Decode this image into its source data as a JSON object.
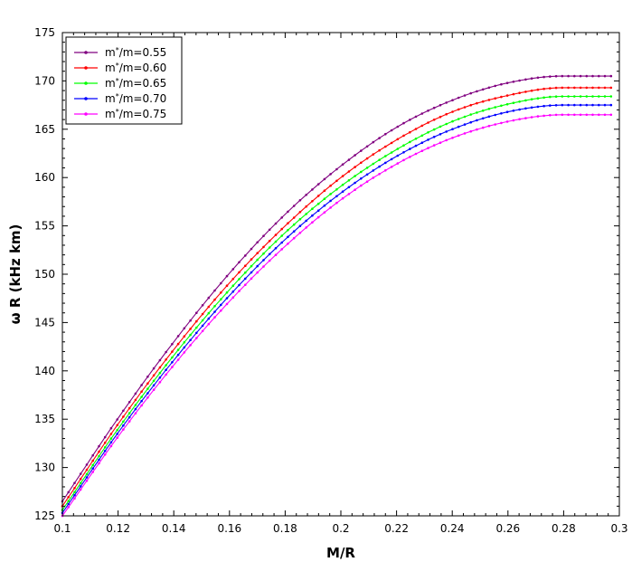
{
  "chart_data": {
    "type": "line",
    "title": "",
    "xlabel": "M/R",
    "ylabel": "ω R (kHz km)",
    "xlim": [
      0.1,
      0.3
    ],
    "ylim": [
      125,
      175
    ],
    "xticks": [
      0.1,
      0.12,
      0.14,
      0.16,
      0.18,
      0.2,
      0.22,
      0.24,
      0.26,
      0.28,
      0.3
    ],
    "xtick_labels": [
      "0.1",
      "0.12",
      "0.14",
      "0.16",
      "0.18",
      "0.2",
      "0.22",
      "0.24",
      "0.26",
      "0.28",
      "0.3"
    ],
    "yticks": [
      125,
      130,
      135,
      140,
      145,
      150,
      155,
      160,
      165,
      170,
      175
    ],
    "ytick_labels": [
      "125",
      "130",
      "135",
      "140",
      "145",
      "150",
      "155",
      "160",
      "165",
      "170",
      "175"
    ],
    "grid": false,
    "legend_position": "top-left",
    "series": [
      {
        "name": "m*/m=0.55",
        "label_base": "m",
        "label_sup": "*",
        "label_rest": "/m=0.55",
        "color": "#800080",
        "x": [
          0.1,
          0.12,
          0.14,
          0.16,
          0.18,
          0.2,
          0.22,
          0.24,
          0.26,
          0.28,
          0.297
        ],
        "y": [
          126.5,
          135.1,
          143.0,
          150.1,
          156.2,
          161.2,
          165.2,
          168.0,
          169.8,
          170.5,
          170.5
        ]
      },
      {
        "name": "m*/m=0.60",
        "label_base": "m",
        "label_sup": "*",
        "label_rest": "/m=0.60",
        "color": "#ff0000",
        "x": [
          0.1,
          0.12,
          0.14,
          0.16,
          0.18,
          0.2,
          0.22,
          0.24,
          0.26,
          0.28,
          0.297
        ],
        "y": [
          126.0,
          134.5,
          142.2,
          149.1,
          155.0,
          160.0,
          163.9,
          166.8,
          168.5,
          169.3,
          169.3
        ]
      },
      {
        "name": "m*/m=0.65",
        "label_base": "m",
        "label_sup": "*",
        "label_rest": "/m=0.65",
        "color": "#00ff00",
        "x": [
          0.1,
          0.12,
          0.14,
          0.16,
          0.18,
          0.2,
          0.22,
          0.24,
          0.26,
          0.28,
          0.297
        ],
        "y": [
          125.6,
          134.0,
          141.6,
          148.4,
          154.3,
          159.1,
          162.9,
          165.8,
          167.6,
          168.4,
          168.4
        ]
      },
      {
        "name": "m*/m=0.70",
        "label_base": "m",
        "label_sup": "*",
        "label_rest": "/m=0.70",
        "color": "#0000ff",
        "x": [
          0.1,
          0.12,
          0.14,
          0.16,
          0.18,
          0.2,
          0.22,
          0.24,
          0.26,
          0.28,
          0.297
        ],
        "y": [
          125.3,
          133.6,
          141.1,
          147.8,
          153.6,
          158.4,
          162.2,
          165.0,
          166.8,
          167.5,
          167.5
        ]
      },
      {
        "name": "m*/m=0.75",
        "label_base": "m",
        "label_sup": "*",
        "label_rest": "/m=0.75",
        "color": "#ff00ff",
        "x": [
          0.1,
          0.12,
          0.14,
          0.16,
          0.18,
          0.2,
          0.22,
          0.24,
          0.26,
          0.28,
          0.297
        ],
        "y": [
          125.0,
          133.2,
          140.6,
          147.2,
          152.9,
          157.7,
          161.4,
          164.1,
          165.8,
          166.5,
          166.5
        ]
      }
    ]
  }
}
